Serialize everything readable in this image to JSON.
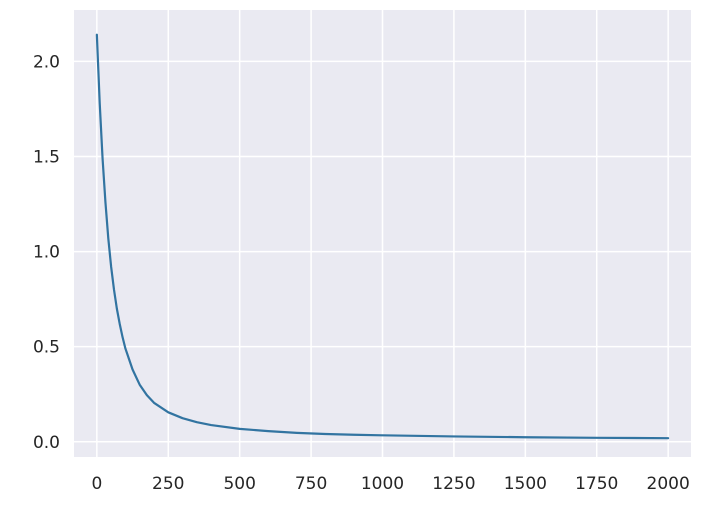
{
  "chart_data": {
    "type": "line",
    "title": "",
    "xlabel": "",
    "ylabel": "",
    "xlim": [
      -80,
      2080
    ],
    "ylim": [
      -0.08,
      2.27
    ],
    "xticks": [
      0,
      250,
      500,
      750,
      1000,
      1250,
      1500,
      1750,
      2000
    ],
    "xtick_labels": [
      "0",
      "250",
      "500",
      "750",
      "1000",
      "1250",
      "1500",
      "1750",
      "2000"
    ],
    "yticks": [
      0.0,
      0.5,
      1.0,
      1.5,
      2.0
    ],
    "ytick_labels": [
      "0.0",
      "0.5",
      "1.0",
      "1.5",
      "2.0"
    ],
    "grid": true,
    "legend": "none",
    "colors": {
      "background": "#eaeaf2",
      "grid": "#ffffff",
      "text": "#262626"
    },
    "series": [
      {
        "color": "#3274a1",
        "x": [
          0,
          10,
          20,
          30,
          40,
          50,
          60,
          70,
          80,
          90,
          100,
          125,
          150,
          175,
          200,
          250,
          300,
          350,
          400,
          500,
          600,
          700,
          800,
          900,
          1000,
          1250,
          1500,
          1750,
          2000
        ],
        "y": [
          2.14,
          1.78,
          1.49,
          1.26,
          1.07,
          0.92,
          0.8,
          0.7,
          0.62,
          0.55,
          0.49,
          0.38,
          0.3,
          0.245,
          0.205,
          0.155,
          0.124,
          0.103,
          0.088,
          0.068,
          0.056,
          0.047,
          0.041,
          0.037,
          0.034,
          0.028,
          0.024,
          0.021,
          0.019
        ]
      }
    ]
  }
}
